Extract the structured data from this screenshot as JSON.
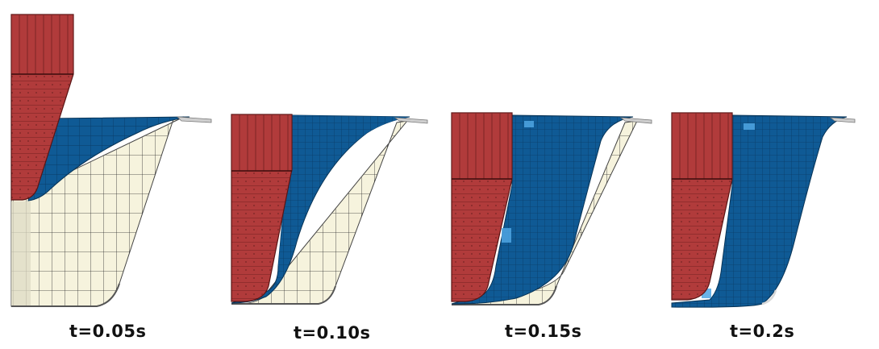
{
  "figure": {
    "panels": [
      {
        "label": "t=0.05s"
      },
      {
        "label": "t=0.10s"
      },
      {
        "label": "t=0.15s"
      },
      {
        "label": "t=0.2s"
      }
    ],
    "colors": {
      "punch": "#b13b3b",
      "punch_dark": "#7d2424",
      "sheet": "#0f5a95",
      "sheet_highlight": "#4fa6e3",
      "die": "#f6f3dd",
      "die_shadow": "#dedbc4",
      "mesh_line": "#2a2a2a"
    }
  }
}
